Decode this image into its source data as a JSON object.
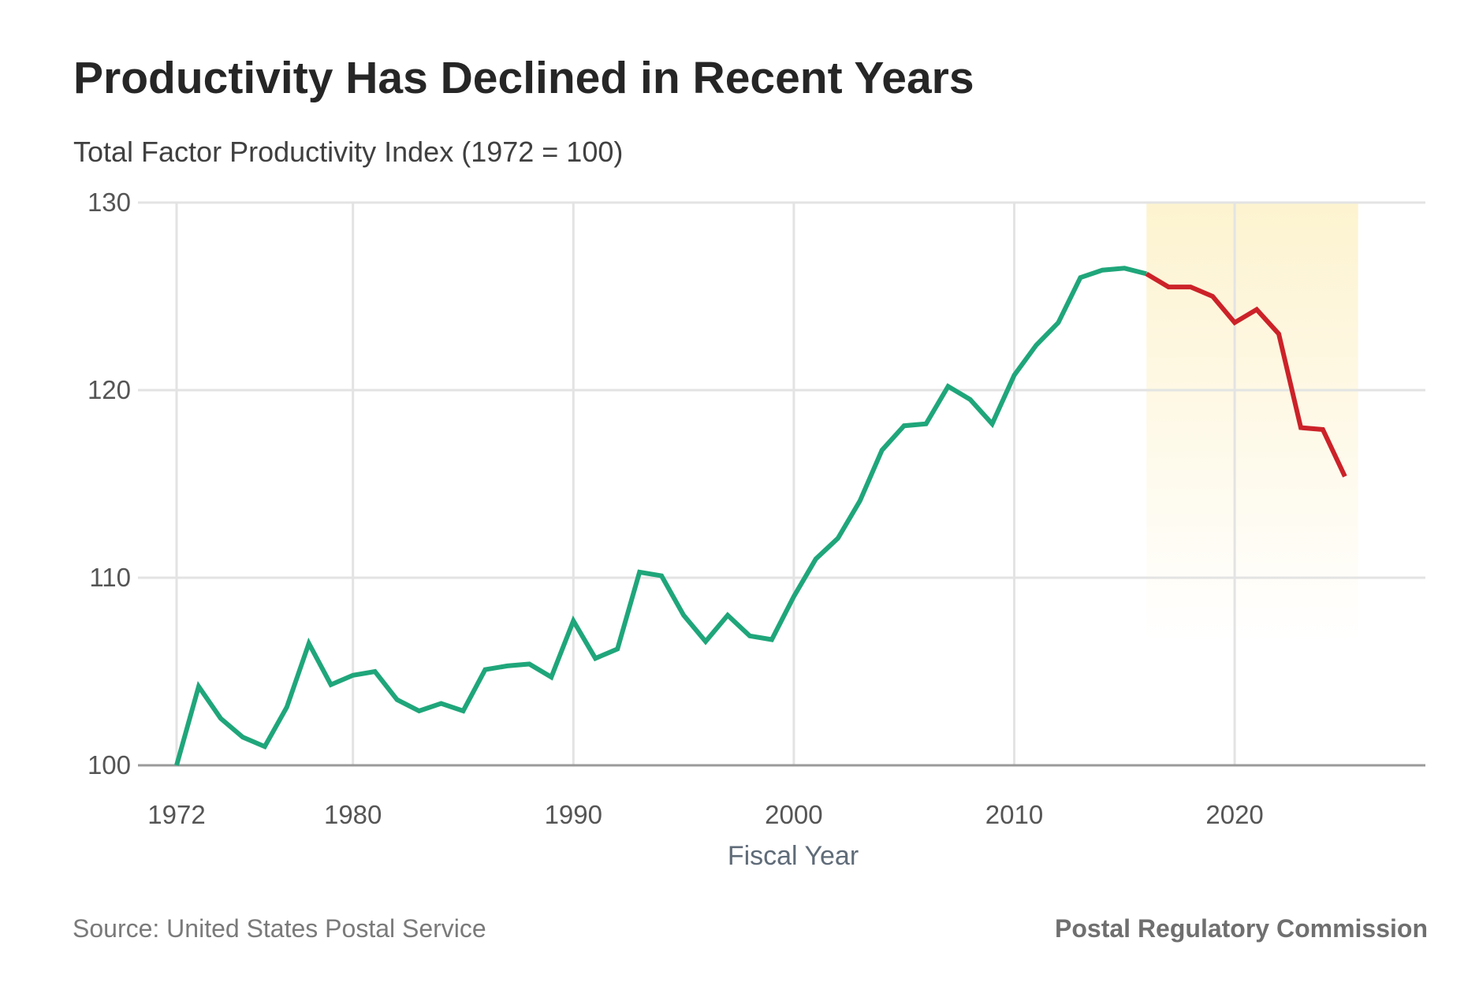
{
  "header": {
    "title": "Productivity Has Declined in Recent Years",
    "subtitle": "Total Factor Productivity Index (1972 = 100)"
  },
  "footer": {
    "source": "Source: United States Postal Service",
    "brand": "Postal Regulatory Commission"
  },
  "chart_data": {
    "type": "line",
    "title": "Productivity Has Declined in Recent Years",
    "subtitle": "Total Factor Productivity Index (1972 = 100)",
    "xlabel": "Fiscal Year",
    "ylabel": "",
    "xlim": [
      1970,
      2028
    ],
    "ylim": [
      100,
      130
    ],
    "x_ticks": [
      1972,
      1980,
      1990,
      2000,
      2010,
      2020
    ],
    "y_ticks": [
      100,
      110,
      120,
      130
    ],
    "grid": true,
    "highlight": {
      "x_range": [
        2016,
        2025.6
      ],
      "color": "#fdf3d0"
    },
    "series": [
      {
        "color": "#1fa67a",
        "x": [
          1972,
          1973,
          1974,
          1975,
          1976,
          1977,
          1978,
          1979,
          1980,
          1981,
          1982,
          1983,
          1984,
          1985,
          1986,
          1987,
          1988,
          1989,
          1990,
          1991,
          1992,
          1993,
          1994,
          1995,
          1996,
          1997,
          1998,
          1999,
          2000,
          2001,
          2002,
          2003,
          2004,
          2005,
          2006,
          2007,
          2008,
          2009,
          2010,
          2011,
          2012,
          2013,
          2014,
          2015,
          2016
        ],
        "y": [
          100.0,
          104.2,
          102.5,
          101.5,
          101.0,
          103.1,
          106.5,
          104.3,
          104.8,
          105.0,
          103.5,
          102.9,
          103.3,
          102.9,
          105.1,
          105.3,
          105.4,
          104.7,
          107.7,
          105.7,
          106.2,
          110.3,
          110.1,
          108.0,
          106.6,
          108.0,
          106.9,
          106.7,
          109.0,
          111.0,
          112.1,
          114.1,
          116.8,
          118.1,
          118.2,
          120.2,
          119.5,
          118.2,
          120.8,
          122.4,
          123.6,
          126.0,
          126.4,
          126.5,
          126.2
        ]
      },
      {
        "color": "#cc2229",
        "x": [
          2016,
          2017,
          2018,
          2019,
          2020,
          2021,
          2022,
          2023,
          2024,
          2025
        ],
        "y": [
          126.2,
          125.5,
          125.5,
          125.0,
          123.6,
          124.3,
          123.0,
          118.0,
          117.9,
          115.4
        ]
      }
    ]
  }
}
